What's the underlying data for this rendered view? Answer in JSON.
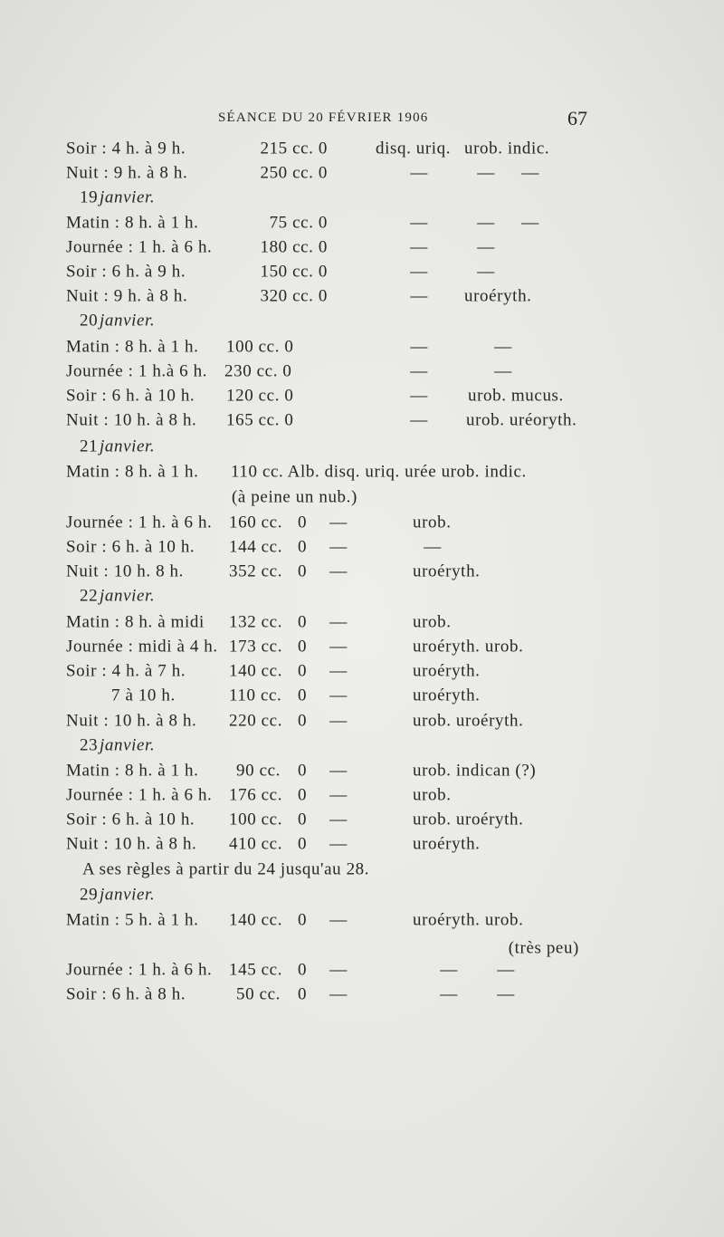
{
  "header": {
    "title": "SÉANCE DU 20 FÉVRIER 1906",
    "page_number": "67"
  },
  "rows": [
    {
      "cells": [
        "Soir : 4 h. à 9 h.",
        "215 cc. 0",
        "disq. uriq.",
        "urob. indic."
      ]
    },
    {
      "cells": [
        "Nuit : 9 h. à 8 h.",
        "250 cc. 0",
        "—",
        "—",
        "—"
      ]
    },
    {
      "cells": [
        "19",
        "janvier."
      ]
    },
    {
      "cells": [
        "Matin : 8 h. à 1 h.",
        "75 cc. 0",
        "—",
        "—",
        "—"
      ]
    },
    {
      "cells": [
        "Journée : 1 h. à 6 h.",
        "180 cc. 0",
        "—",
        "—"
      ]
    },
    {
      "cells": [
        "Soir : 6 h. à 9 h.",
        "150 cc. 0",
        "—",
        "—"
      ]
    },
    {
      "cells": [
        "Nuit : 9 h. à 8 h.",
        "320 cc. 0",
        "—",
        "uroéryth."
      ]
    },
    {
      "cells": [
        "20",
        "janvier."
      ]
    },
    {
      "cells": [
        "Matin : 8 h. à 1 h.",
        "100 cc. 0",
        "—",
        "—"
      ]
    },
    {
      "cells": [
        "Journée : 1 h.à 6 h.",
        "230 cc. 0",
        "—",
        "—"
      ]
    },
    {
      "cells": [
        "Soir : 6 h. à 10 h.",
        "120 cc. 0",
        "—",
        "urob. mucus."
      ]
    },
    {
      "cells": [
        "Nuit : 10 h. à 8 h.",
        "165 cc. 0",
        "—",
        "urob. uréoryth."
      ]
    },
    {
      "cells": [
        "21",
        "janvier."
      ]
    },
    {
      "cells": [
        "Matin : 8 h. à 1 h.",
        "110 cc. Alb. disq. uriq. urée urob. indic."
      ]
    },
    {
      "cells": [
        "(à peine un nub.)"
      ]
    },
    {
      "cells": [
        "Journée : 1 h. à 6 h.",
        "160 cc.",
        "0",
        "—",
        "urob."
      ]
    },
    {
      "cells": [
        "Soir : 6 h. à 10 h.",
        "144 cc.",
        "0",
        "—",
        "—"
      ]
    },
    {
      "cells": [
        "Nuit : 10 h. 8 h.",
        "352 cc.",
        "0",
        "—",
        "uroéryth."
      ]
    },
    {
      "cells": [
        "22",
        "janvier."
      ]
    },
    {
      "cells": [
        "Matin : 8 h. à midi",
        "132 cc.",
        "0",
        "—",
        "urob."
      ]
    },
    {
      "cells": [
        "Journée : midi à 4 h.",
        "173 cc.",
        "0",
        "—",
        "uroéryth. urob."
      ]
    },
    {
      "cells": [
        "Soir : 4 h. à 7 h.",
        "140 cc.",
        "0",
        "—",
        "uroéryth."
      ]
    },
    {
      "cells": [
        "7 à 10 h.",
        "110 cc.",
        "0",
        "—",
        "uroéryth."
      ]
    },
    {
      "cells": [
        "Nuit : 10 h. à 8 h.",
        "220 cc.",
        "0",
        "—",
        "urob. uroéryth."
      ]
    },
    {
      "cells": [
        "23",
        "janvier."
      ]
    },
    {
      "cells": [
        "Matin : 8 h. à 1 h.",
        "90 cc.",
        "0",
        "—",
        "urob. indican (?)"
      ]
    },
    {
      "cells": [
        "Journée : 1 h. à 6 h.",
        "176 cc.",
        "0",
        "—",
        "urob."
      ]
    },
    {
      "cells": [
        "Soir : 6 h. à 10 h.",
        "100 cc.",
        "0",
        "—",
        "urob. uroéryth."
      ]
    },
    {
      "cells": [
        "Nuit : 10 h. à 8 h.",
        "410 cc.",
        "0",
        "—",
        "uroéryth."
      ]
    },
    {
      "cells": [
        "A ses règles à partir du 24 jusqu'au 28."
      ]
    },
    {
      "cells": [
        "29",
        "janvier."
      ]
    },
    {
      "cells": [
        "Matin : 5 h. à 1 h.",
        "140 cc.",
        "0",
        "—",
        "uroéryth. urob."
      ]
    },
    {
      "cells": [
        "(très peu)"
      ]
    },
    {
      "cells": [
        "Journée : 1 h. à 6 h.",
        "145 cc.",
        "0",
        "—",
        "—",
        "—"
      ]
    },
    {
      "cells": [
        "Soir : 6 h. à 8 h.",
        "50 cc.",
        "0",
        "—",
        "—",
        "—"
      ]
    }
  ]
}
